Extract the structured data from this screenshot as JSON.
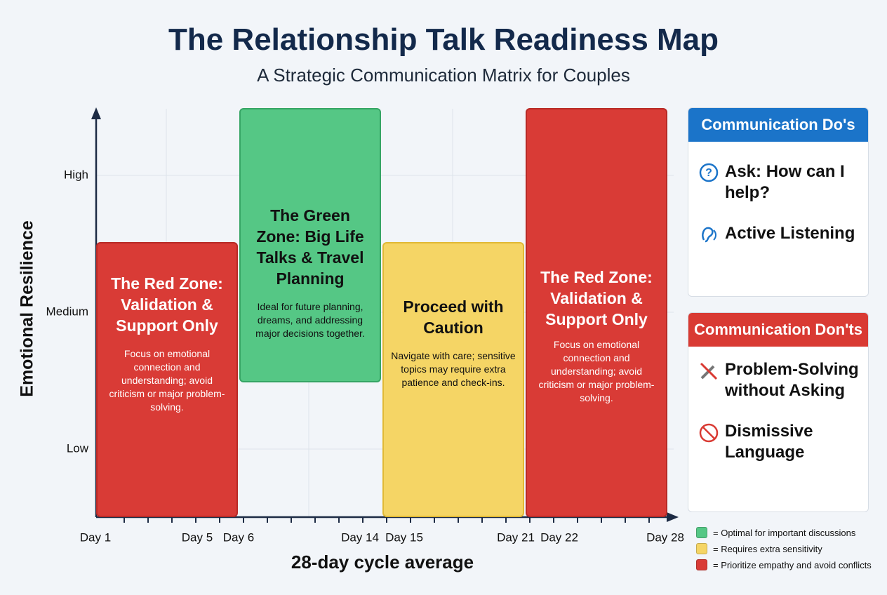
{
  "header": {
    "title": "The Relationship Talk Readiness Map",
    "subtitle": "A Strategic Communication Matrix for Couples"
  },
  "axes": {
    "y_title": "Emotional Resilience",
    "x_title": "28-day cycle average",
    "y_levels": [
      "High",
      "Medium",
      "Low"
    ],
    "x_labels": [
      "Day 1",
      "Day 5",
      "Day 6",
      "Day 14",
      "Day 15",
      "Day 21",
      "Day 22",
      "Day 28"
    ]
  },
  "zones": [
    {
      "title": "The Red Zone: Validation & Support Only",
      "description": "Focus on emotional connection and understanding; avoid criticism or major problem-solving."
    },
    {
      "title": "The Green Zone: Big Life Talks & Travel Planning",
      "description": "Ideal for future planning, dreams, and addressing major decisions together."
    },
    {
      "title": "Proceed with Caution",
      "description": "Navigate with care; sensitive topics may require extra patience and check-ins."
    },
    {
      "title": "The Red Zone: Validation & Support Only",
      "description": "Focus on emotional connection and understanding; avoid criticism or major problem-solving."
    }
  ],
  "dos": {
    "title": "Communication Do's",
    "items": [
      "Ask: How can I help?",
      "Active Listening"
    ]
  },
  "donts": {
    "title": "Communication Don'ts",
    "items": [
      "Problem-Solving without Asking",
      "Dismissive Language"
    ]
  },
  "legend": [
    "= Optimal for important discussions",
    "= Requires extra sensitivity",
    "= Prioritize empathy and avoid conflicts"
  ]
}
